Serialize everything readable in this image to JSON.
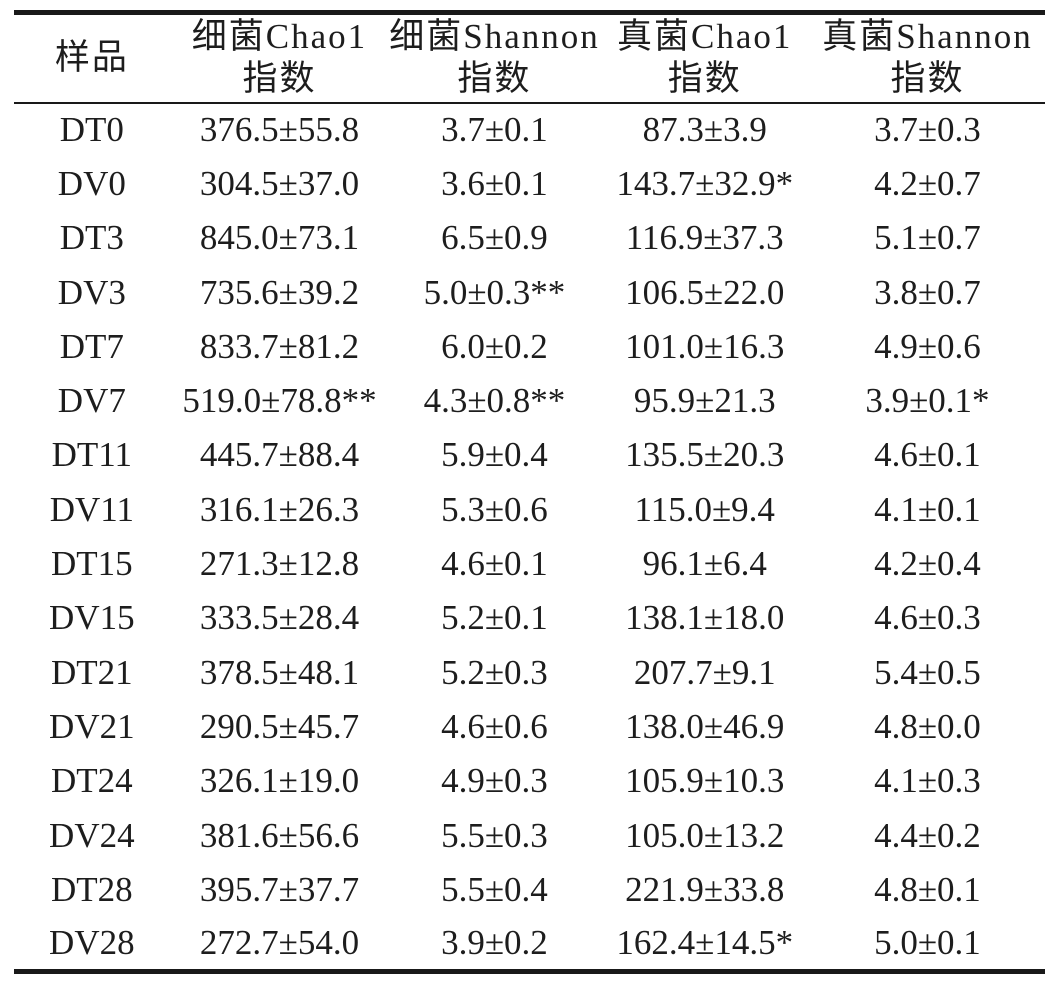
{
  "chart_data": {
    "type": "table",
    "description_visible_text_only": true,
    "columns": [
      {
        "line1": "样品",
        "line2": ""
      },
      {
        "line1": "细菌Chao1",
        "line2": "指数"
      },
      {
        "line1": "细菌Shannon",
        "line2": "指数"
      },
      {
        "line1": "真菌Chao1",
        "line2": "指数"
      },
      {
        "line1": "真菌Shannon",
        "line2": "指数"
      }
    ],
    "rows": [
      [
        "DT0",
        "376.5±55.8",
        "3.7±0.1",
        "87.3±3.9",
        "3.7±0.3"
      ],
      [
        "DV0",
        "304.5±37.0",
        "3.6±0.1",
        "143.7±32.9*",
        "4.2±0.7"
      ],
      [
        "DT3",
        "845.0±73.1",
        "6.5±0.9",
        "116.9±37.3",
        "5.1±0.7"
      ],
      [
        "DV3",
        "735.6±39.2",
        "5.0±0.3**",
        "106.5±22.0",
        "3.8±0.7"
      ],
      [
        "DT7",
        "833.7±81.2",
        "6.0±0.2",
        "101.0±16.3",
        "4.9±0.6"
      ],
      [
        "DV7",
        "519.0±78.8**",
        "4.3±0.8**",
        "95.9±21.3",
        "3.9±0.1*"
      ],
      [
        "DT11",
        "445.7±88.4",
        "5.9±0.4",
        "135.5±20.3",
        "4.6±0.1"
      ],
      [
        "DV11",
        "316.1±26.3",
        "5.3±0.6",
        "115.0±9.4",
        "4.1±0.1"
      ],
      [
        "DT15",
        "271.3±12.8",
        "4.6±0.1",
        "96.1±6.4",
        "4.2±0.4"
      ],
      [
        "DV15",
        "333.5±28.4",
        "5.2±0.1",
        "138.1±18.0",
        "4.6±0.3"
      ],
      [
        "DT21",
        "378.5±48.1",
        "5.2±0.3",
        "207.7±9.1",
        "5.4±0.5"
      ],
      [
        "DV21",
        "290.5±45.7",
        "4.6±0.6",
        "138.0±46.9",
        "4.8±0.0"
      ],
      [
        "DT24",
        "326.1±19.0",
        "4.9±0.3",
        "105.9±10.3",
        "4.1±0.3"
      ],
      [
        "DV24",
        "381.6±56.6",
        "5.5±0.3",
        "105.0±13.2",
        "4.4±0.2"
      ],
      [
        "DT28",
        "395.7±37.7",
        "5.5±0.4",
        "221.9±33.8",
        "4.8±0.1"
      ],
      [
        "DV28",
        "272.7±54.0",
        "3.9±0.2",
        "162.4±14.5*",
        "5.0±0.1"
      ]
    ],
    "colors": {
      "text": "#1d1d1d",
      "background": "#ffffff",
      "rule": "#191919"
    },
    "layout": {
      "grid": "horizontal rules only: thick top, thin under header, thick bottom",
      "alignment": "all cells centered"
    }
  }
}
